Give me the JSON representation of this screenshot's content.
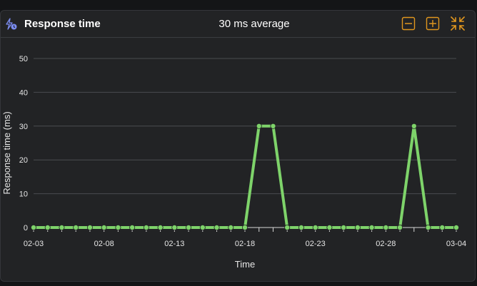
{
  "panel": {
    "title": "Response time",
    "subtitle": "30 ms average",
    "icon": "response-time-icon",
    "buttons": [
      {
        "name": "zoom-out-button",
        "icon": "minus-box-icon"
      },
      {
        "name": "zoom-in-button",
        "icon": "plus-box-icon"
      },
      {
        "name": "collapse-button",
        "icon": "collapse-icon"
      }
    ],
    "accent_color": "#e0961e",
    "icon_color": "#7b8cf0"
  },
  "chart_data": {
    "type": "line",
    "title": "",
    "xlabel": "Time",
    "ylabel": "Response time (ms)",
    "ylim": [
      0,
      55
    ],
    "yticks": [
      0,
      10,
      20,
      30,
      40,
      50
    ],
    "x_ticks": [
      "02-03",
      "02-08",
      "02-13",
      "02-18",
      "02-23",
      "02-28",
      "03-04"
    ],
    "x": [
      "02-03",
      "02-04",
      "02-05",
      "02-06",
      "02-07",
      "02-08",
      "02-09",
      "02-10",
      "02-11",
      "02-12",
      "02-13",
      "02-14",
      "02-15",
      "02-16",
      "02-17",
      "02-18",
      "02-19",
      "02-20",
      "02-21",
      "02-22",
      "02-23",
      "02-24",
      "02-25",
      "02-26",
      "02-27",
      "02-28",
      "02-29",
      "03-01",
      "03-02",
      "03-03",
      "03-04"
    ],
    "series": [
      {
        "color": "#7ed36a",
        "values": [
          0,
          0,
          0,
          0,
          0,
          0,
          0,
          0,
          0,
          0,
          0,
          0,
          0,
          0,
          0,
          0,
          30,
          30,
          0,
          0,
          0,
          0,
          0,
          0,
          0,
          0,
          0,
          30,
          0,
          0,
          0
        ]
      }
    ],
    "grid": true
  }
}
